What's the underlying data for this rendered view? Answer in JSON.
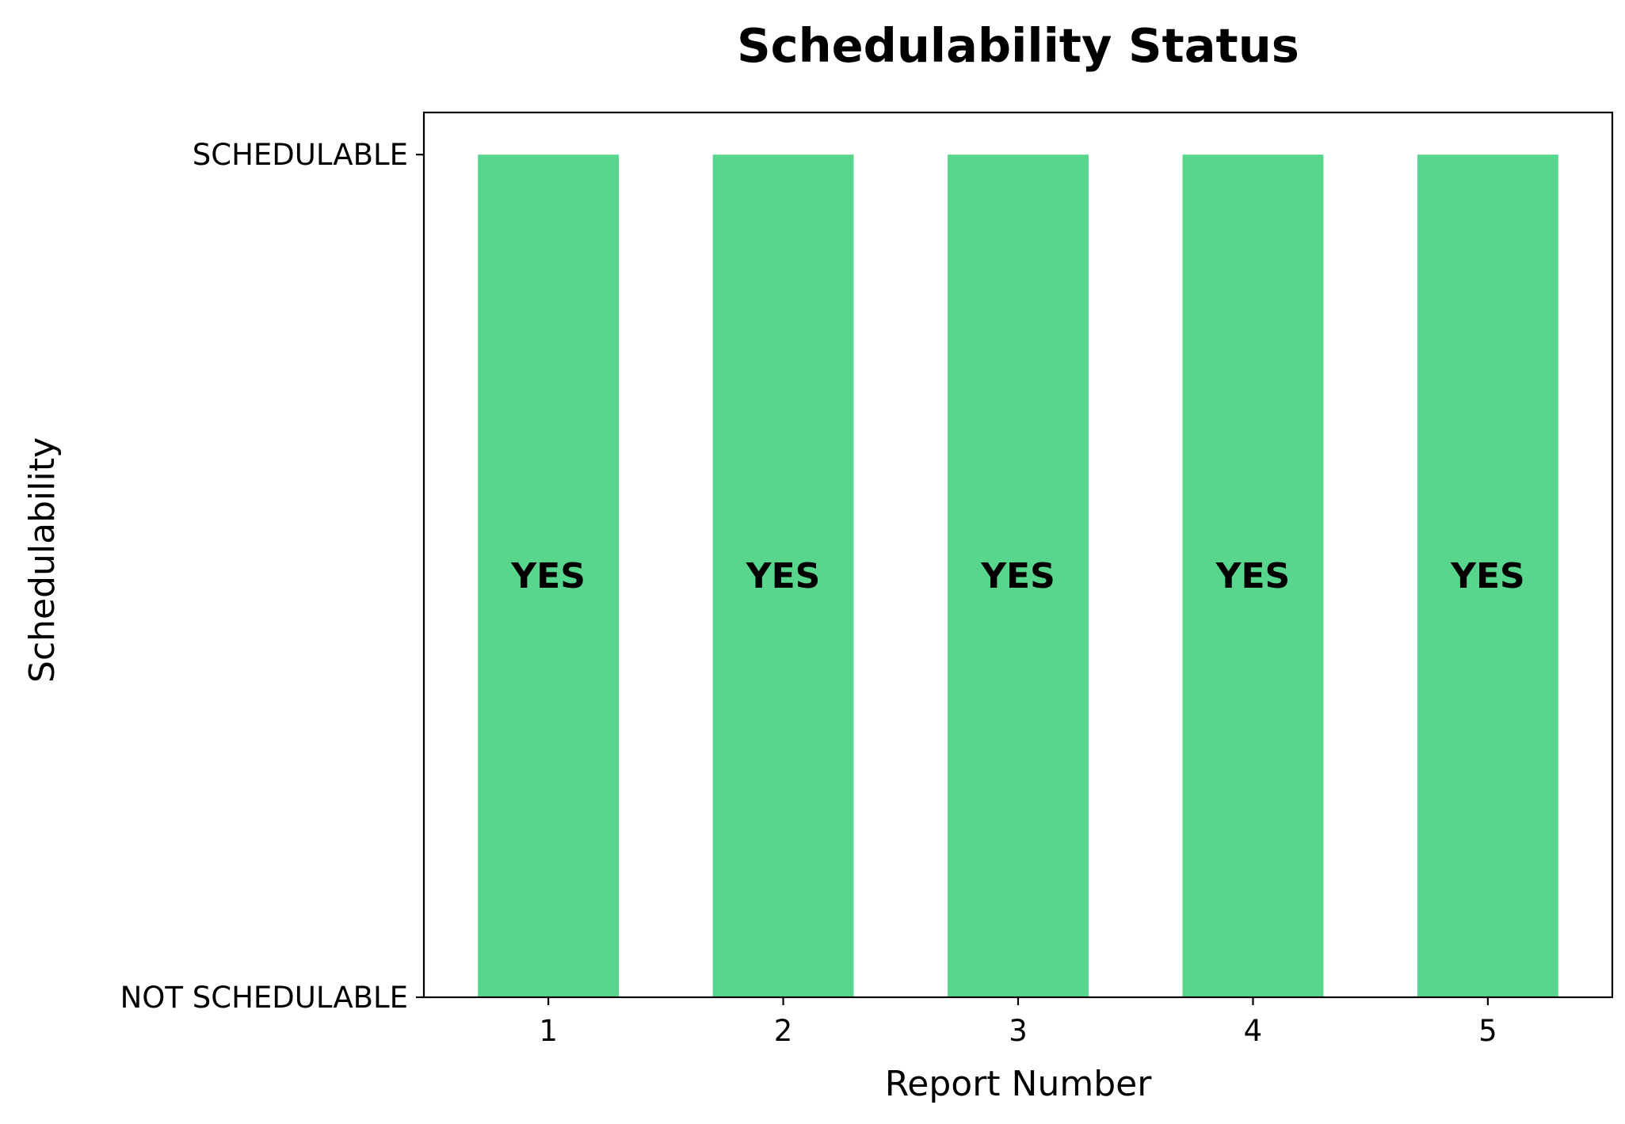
{
  "chart_data": {
    "type": "bar",
    "title": "Schedulability Status",
    "xlabel": "Report Number",
    "ylabel": "Schedulability",
    "categories": [
      "1",
      "2",
      "3",
      "4",
      "5"
    ],
    "values": [
      1,
      1,
      1,
      1,
      1
    ],
    "data_labels": [
      "YES",
      "YES",
      "YES",
      "YES",
      "YES"
    ],
    "ytick_values": [
      0,
      1
    ],
    "ytick_labels": [
      "NOT SCHEDULABLE",
      "SCHEDULABLE"
    ],
    "ylim": [
      0,
      1.05
    ],
    "xlim": [
      0.47,
      5.53
    ],
    "bar_width": 0.6,
    "bar_color": "#58d68d",
    "grid": false,
    "legend": "none"
  }
}
